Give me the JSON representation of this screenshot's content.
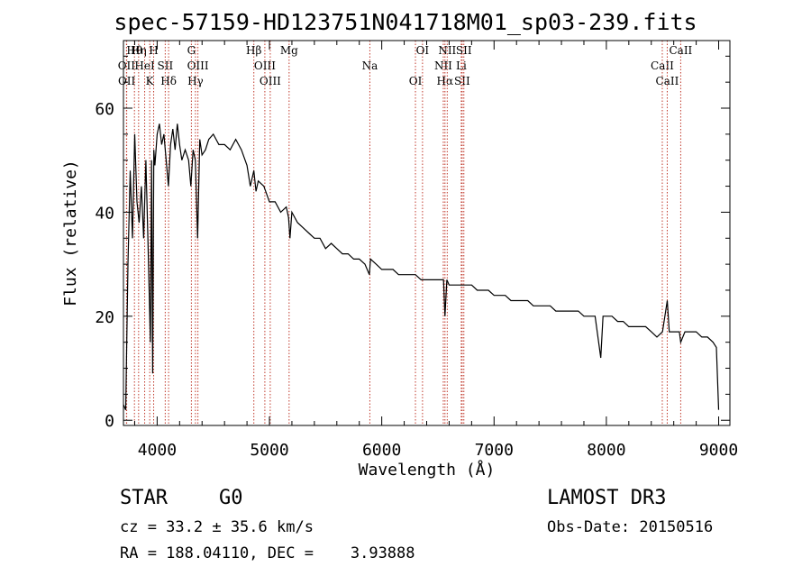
{
  "chart_data": {
    "type": "line",
    "title": "spec-57159-HD123751N041718M01_sp03-239.fits",
    "xlabel": "Wavelength (Å)",
    "ylabel": "Flux (relative)",
    "xlim": [
      3700,
      9100
    ],
    "ylim": [
      -1,
      73
    ],
    "xticks": [
      4000,
      5000,
      6000,
      7000,
      8000,
      9000
    ],
    "yticks": [
      0,
      20,
      40,
      60
    ],
    "series": [
      {
        "name": "spectrum",
        "x": [
          3700,
          3720,
          3740,
          3760,
          3780,
          3800,
          3820,
          3840,
          3860,
          3880,
          3900,
          3920,
          3940,
          3950,
          3960,
          3970,
          3980,
          4000,
          4020,
          4040,
          4060,
          4080,
          4100,
          4120,
          4140,
          4160,
          4180,
          4200,
          4220,
          4250,
          4280,
          4300,
          4320,
          4340,
          4360,
          4380,
          4400,
          4430,
          4460,
          4500,
          4550,
          4600,
          4650,
          4700,
          4750,
          4800,
          4830,
          4861,
          4880,
          4900,
          4950,
          5000,
          5050,
          5100,
          5150,
          5170,
          5183,
          5200,
          5250,
          5300,
          5350,
          5400,
          5450,
          5500,
          5550,
          5600,
          5650,
          5700,
          5750,
          5800,
          5850,
          5890,
          5900,
          5950,
          6000,
          6050,
          6100,
          6150,
          6200,
          6250,
          6300,
          6350,
          6400,
          6450,
          6500,
          6550,
          6563,
          6580,
          6600,
          6650,
          6700,
          6750,
          6800,
          6850,
          6900,
          6950,
          7000,
          7050,
          7100,
          7150,
          7200,
          7250,
          7300,
          7350,
          7400,
          7450,
          7500,
          7550,
          7600,
          7650,
          7700,
          7750,
          7800,
          7850,
          7900,
          7950,
          7970,
          8000,
          8050,
          8100,
          8150,
          8200,
          8250,
          8300,
          8350,
          8400,
          8450,
          8500,
          8542,
          8560,
          8600,
          8650,
          8662,
          8700,
          8750,
          8800,
          8850,
          8900,
          8950,
          8980,
          9000
        ],
        "y": [
          3,
          2,
          30,
          48,
          35,
          55,
          42,
          38,
          45,
          35,
          50,
          33,
          15,
          50,
          9,
          52,
          49,
          55,
          57,
          53,
          55,
          50,
          45,
          53,
          56,
          52,
          57,
          53,
          50,
          52,
          50,
          45,
          52,
          50,
          35,
          54,
          51,
          52,
          54,
          55,
          53,
          53,
          52,
          54,
          52,
          49,
          45,
          48,
          44,
          46,
          45,
          42,
          42,
          40,
          41,
          39,
          35,
          40,
          38,
          37,
          36,
          35,
          35,
          33,
          34,
          33,
          32,
          32,
          31,
          31,
          30,
          28,
          31,
          30,
          29,
          29,
          29,
          28,
          28,
          28,
          28,
          27,
          27,
          27,
          27,
          27,
          20,
          27,
          26,
          26,
          26,
          26,
          26,
          25,
          25,
          25,
          24,
          24,
          24,
          23,
          23,
          23,
          23,
          22,
          22,
          22,
          22,
          21,
          21,
          21,
          21,
          21,
          20,
          20,
          20,
          12,
          20,
          20,
          20,
          19,
          19,
          18,
          18,
          18,
          18,
          17,
          16,
          17,
          23,
          17,
          17,
          17,
          15,
          17,
          17,
          17,
          16,
          16,
          15,
          14,
          2
        ]
      }
    ],
    "lines": [
      {
        "label": "Hθ",
        "wave": 3798
      },
      {
        "label": "OII",
        "wave": 3727
      },
      {
        "label": "OII",
        "wave": 3729
      },
      {
        "label": "Hη",
        "wave": 3835
      },
      {
        "label": "HeI",
        "wave": 3889
      },
      {
        "label": "K",
        "wave": 3934
      },
      {
        "label": "H",
        "wave": 3969
      },
      {
        "label": "SII",
        "wave": 4072
      },
      {
        "label": "Hδ",
        "wave": 4102
      },
      {
        "label": "G",
        "wave": 4305
      },
      {
        "label": "OIII",
        "wave": 4363
      },
      {
        "label": "Hγ",
        "wave": 4341
      },
      {
        "label": "Hβ",
        "wave": 4861
      },
      {
        "label": "OIII",
        "wave": 4959
      },
      {
        "label": "OIII",
        "wave": 5007
      },
      {
        "label": "Mg",
        "wave": 5175
      },
      {
        "label": "Na",
        "wave": 5894
      },
      {
        "label": "OI",
        "wave": 6300
      },
      {
        "label": "OI",
        "wave": 6363
      },
      {
        "label": "NII",
        "wave": 6548
      },
      {
        "label": "Hα",
        "wave": 6563
      },
      {
        "label": "NII",
        "wave": 6583
      },
      {
        "label": "Li",
        "wave": 6708
      },
      {
        "label": "SII",
        "wave": 6716
      },
      {
        "label": "SII",
        "wave": 6731
      },
      {
        "label": "CaII",
        "wave": 8498
      },
      {
        "label": "CaII",
        "wave": 8542
      },
      {
        "label": "CaII",
        "wave": 8662
      }
    ]
  },
  "info": {
    "class": "STAR",
    "subclass": "G0",
    "survey": "LAMOST DR3",
    "cz": "cz = 33.2 ± 35.6 km/s",
    "obs_date": "Obs-Date: 20150516",
    "coords": "RA = 188.04110, DEC =    3.93888"
  },
  "colors": {
    "spectrum": "#000000",
    "lines": "#c0392b",
    "axis": "#000000"
  }
}
